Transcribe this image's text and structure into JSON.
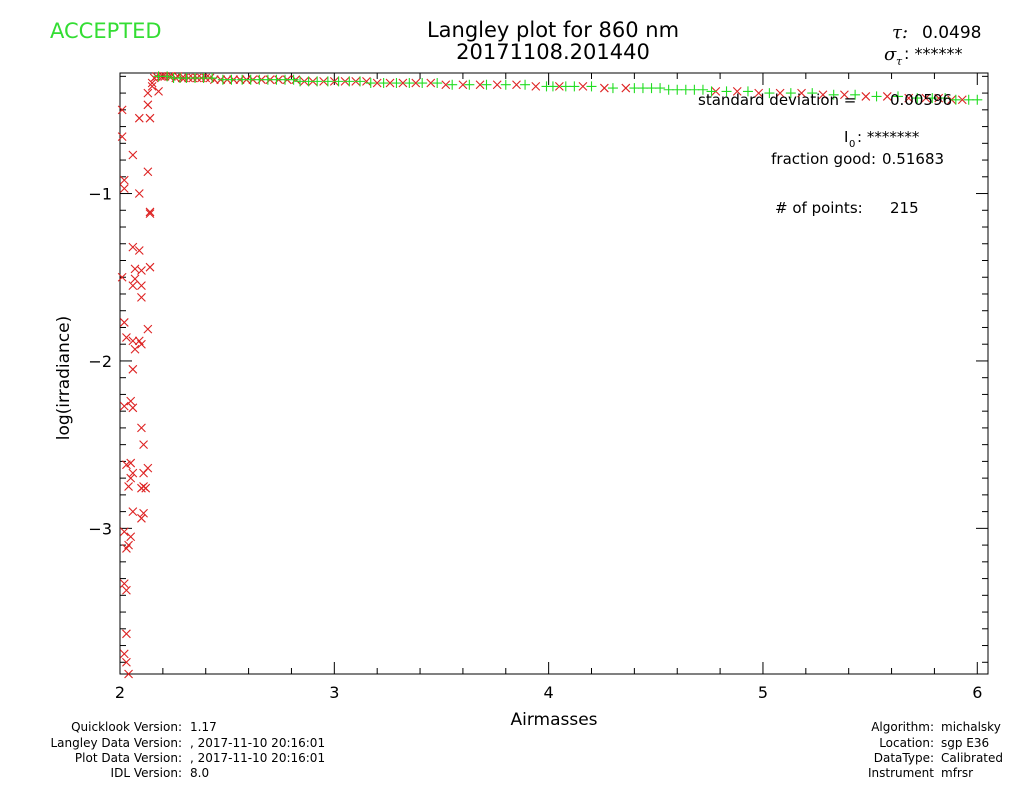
{
  "status": "ACCEPTED",
  "tau_label": "τ:",
  "tau_value": "0.0498",
  "sigma_label": "σ",
  "sigma_sub": "τ",
  "sigma_value": ": ******",
  "stats": {
    "std_label": "standard deviation  =",
    "std_value": "0.00596",
    "i0_label": "I",
    "i0_sub": "0",
    "i0_value": ": *******",
    "fraction_label": "fraction good:",
    "fraction_value": "0.51683",
    "points_label": "# of points:",
    "points_value": "215"
  },
  "footer_left": [
    {
      "label": "Quicklook Version:",
      "value": "1.17"
    },
    {
      "label": "Langley Data Version:",
      "value": ", 2017-11-10 20:16:01"
    },
    {
      "label": "Plot Data Version:",
      "value": ", 2017-11-10 20:16:01"
    },
    {
      "label": "IDL Version:",
      "value": "8.0"
    }
  ],
  "footer_right": [
    {
      "label": "Algorithm:",
      "value": "michalsky"
    },
    {
      "label": "Location:",
      "value": "sgp E36"
    },
    {
      "label": "DataType:",
      "value": "Calibrated"
    },
    {
      "label": "Instrument",
      "value": "mfrsr"
    }
  ],
  "colors": {
    "status": "#33dd33",
    "good": "#22dd22",
    "rejected": "#dd2222",
    "axes": "#000000"
  },
  "chart_data": {
    "type": "scatter",
    "title": "Langley plot for 860 nm",
    "subtitle": "20171108.201440",
    "xlabel": "Airmasses",
    "ylabel": "log(irradiance)",
    "xlim": [
      2,
      6.05
    ],
    "ylim": [
      -3.87,
      -0.28
    ],
    "xticks": [
      2,
      3,
      4,
      5,
      6
    ],
    "yticks": [
      -1,
      -2,
      -3
    ],
    "yticklabels": [
      "−1",
      "−2",
      "−3"
    ],
    "series": [
      {
        "marker": "x",
        "color": "#dd2222",
        "points": [
          [
            2.01,
            -0.5
          ],
          [
            2.01,
            -0.66
          ],
          [
            2.02,
            -0.92
          ],
          [
            2.02,
            -0.97
          ],
          [
            2.01,
            -1.5
          ],
          [
            2.02,
            -1.77
          ],
          [
            2.03,
            -1.86
          ],
          [
            2.02,
            -2.27
          ],
          [
            2.03,
            -2.62
          ],
          [
            2.04,
            -2.75
          ],
          [
            2.02,
            -3.02
          ],
          [
            2.03,
            -3.12
          ],
          [
            2.02,
            -3.33
          ],
          [
            2.03,
            -3.37
          ],
          [
            2.03,
            -3.63
          ],
          [
            2.02,
            -3.75
          ],
          [
            2.03,
            -3.8
          ],
          [
            2.04,
            -3.87
          ],
          [
            2.06,
            -0.77
          ],
          [
            2.06,
            -1.32
          ],
          [
            2.07,
            -1.45
          ],
          [
            2.07,
            -1.51
          ],
          [
            2.06,
            -1.55
          ],
          [
            2.06,
            -1.88
          ],
          [
            2.07,
            -1.93
          ],
          [
            2.06,
            -2.05
          ],
          [
            2.05,
            -2.24
          ],
          [
            2.06,
            -2.28
          ],
          [
            2.05,
            -2.61
          ],
          [
            2.06,
            -2.67
          ],
          [
            2.05,
            -2.7
          ],
          [
            2.06,
            -2.9
          ],
          [
            2.05,
            -3.05
          ],
          [
            2.04,
            -3.1
          ],
          [
            2.09,
            -0.55
          ],
          [
            2.09,
            -1.0
          ],
          [
            2.09,
            -1.34
          ],
          [
            2.1,
            -1.46
          ],
          [
            2.1,
            -1.55
          ],
          [
            2.1,
            -1.62
          ],
          [
            2.09,
            -1.88
          ],
          [
            2.1,
            -1.9
          ],
          [
            2.1,
            -2.4
          ],
          [
            2.11,
            -2.5
          ],
          [
            2.11,
            -2.67
          ],
          [
            2.11,
            -2.75
          ],
          [
            2.1,
            -2.76
          ],
          [
            2.11,
            -2.91
          ],
          [
            2.1,
            -2.94
          ],
          [
            2.13,
            -0.47
          ],
          [
            2.13,
            -0.87
          ],
          [
            2.14,
            -1.11
          ],
          [
            2.14,
            -1.12
          ],
          [
            2.14,
            -1.44
          ],
          [
            2.13,
            -1.81
          ],
          [
            2.13,
            -2.64
          ],
          [
            2.12,
            -2.76
          ],
          [
            2.13,
            -0.4
          ],
          [
            2.14,
            -0.55
          ],
          [
            2.15,
            -0.34
          ],
          [
            2.15,
            -0.36
          ],
          [
            2.16,
            -0.31
          ],
          [
            2.17,
            -0.3
          ],
          [
            2.18,
            -0.39
          ],
          [
            2.19,
            -0.3
          ],
          [
            2.2,
            -0.3
          ],
          [
            2.21,
            -0.3
          ],
          [
            2.23,
            -0.3
          ],
          [
            2.24,
            -0.3
          ],
          [
            2.26,
            -0.31
          ],
          [
            2.27,
            -0.3
          ],
          [
            2.29,
            -0.31
          ],
          [
            2.3,
            -0.31
          ],
          [
            2.32,
            -0.31
          ],
          [
            2.34,
            -0.31
          ],
          [
            2.36,
            -0.31
          ],
          [
            2.38,
            -0.31
          ],
          [
            2.4,
            -0.31
          ],
          [
            2.42,
            -0.31
          ],
          [
            2.44,
            -0.32
          ],
          [
            2.47,
            -0.32
          ],
          [
            2.5,
            -0.32
          ],
          [
            2.53,
            -0.32
          ],
          [
            2.56,
            -0.32
          ],
          [
            2.59,
            -0.32
          ],
          [
            2.62,
            -0.32
          ],
          [
            2.66,
            -0.32
          ],
          [
            2.7,
            -0.32
          ],
          [
            2.74,
            -0.32
          ],
          [
            2.78,
            -0.32
          ],
          [
            2.82,
            -0.32
          ],
          [
            2.86,
            -0.33
          ],
          [
            2.9,
            -0.33
          ],
          [
            2.95,
            -0.33
          ],
          [
            3.0,
            -0.33
          ],
          [
            3.05,
            -0.33
          ],
          [
            3.1,
            -0.33
          ],
          [
            3.15,
            -0.33
          ],
          [
            3.2,
            -0.34
          ],
          [
            3.26,
            -0.34
          ],
          [
            3.32,
            -0.34
          ],
          [
            3.38,
            -0.34
          ],
          [
            3.45,
            -0.34
          ],
          [
            3.52,
            -0.35
          ],
          [
            3.6,
            -0.35
          ],
          [
            3.68,
            -0.35
          ],
          [
            3.76,
            -0.35
          ],
          [
            3.85,
            -0.35
          ],
          [
            3.94,
            -0.36
          ],
          [
            4.05,
            -0.36
          ],
          [
            4.16,
            -0.36
          ],
          [
            4.26,
            -0.37
          ],
          [
            4.36,
            -0.37
          ],
          [
            4.78,
            -0.39
          ],
          [
            4.88,
            -0.39
          ],
          [
            4.98,
            -0.4
          ],
          [
            5.08,
            -0.4
          ],
          [
            5.18,
            -0.4
          ],
          [
            5.28,
            -0.41
          ],
          [
            5.38,
            -0.41
          ],
          [
            5.48,
            -0.42
          ],
          [
            5.58,
            -0.42
          ],
          [
            5.68,
            -0.43
          ],
          [
            5.76,
            -0.43
          ],
          [
            5.82,
            -0.43
          ],
          [
            5.88,
            -0.44
          ],
          [
            5.93,
            -0.44
          ]
        ]
      },
      {
        "marker": "+",
        "color": "#22dd22",
        "points": [
          [
            2.18,
            -0.3
          ],
          [
            2.22,
            -0.3
          ],
          [
            2.25,
            -0.31
          ],
          [
            2.28,
            -0.31
          ],
          [
            2.31,
            -0.31
          ],
          [
            2.35,
            -0.31
          ],
          [
            2.39,
            -0.31
          ],
          [
            2.43,
            -0.31
          ],
          [
            2.48,
            -0.32
          ],
          [
            2.52,
            -0.32
          ],
          [
            2.57,
            -0.32
          ],
          [
            2.61,
            -0.32
          ],
          [
            2.65,
            -0.32
          ],
          [
            2.69,
            -0.32
          ],
          [
            2.73,
            -0.32
          ],
          [
            2.77,
            -0.32
          ],
          [
            2.81,
            -0.32
          ],
          [
            2.84,
            -0.33
          ],
          [
            2.88,
            -0.33
          ],
          [
            2.92,
            -0.33
          ],
          [
            2.97,
            -0.33
          ],
          [
            3.02,
            -0.33
          ],
          [
            3.07,
            -0.33
          ],
          [
            3.12,
            -0.33
          ],
          [
            3.17,
            -0.34
          ],
          [
            3.23,
            -0.34
          ],
          [
            3.29,
            -0.34
          ],
          [
            3.35,
            -0.34
          ],
          [
            3.41,
            -0.34
          ],
          [
            3.48,
            -0.34
          ],
          [
            3.55,
            -0.35
          ],
          [
            3.63,
            -0.35
          ],
          [
            3.71,
            -0.35
          ],
          [
            3.8,
            -0.35
          ],
          [
            3.89,
            -0.35
          ],
          [
            3.99,
            -0.36
          ],
          [
            4.02,
            -0.36
          ],
          [
            4.08,
            -0.36
          ],
          [
            4.12,
            -0.36
          ],
          [
            4.2,
            -0.36
          ],
          [
            4.3,
            -0.37
          ],
          [
            4.4,
            -0.37
          ],
          [
            4.44,
            -0.37
          ],
          [
            4.48,
            -0.37
          ],
          [
            4.52,
            -0.37
          ],
          [
            4.56,
            -0.38
          ],
          [
            4.6,
            -0.38
          ],
          [
            4.64,
            -0.38
          ],
          [
            4.68,
            -0.38
          ],
          [
            4.72,
            -0.38
          ],
          [
            4.76,
            -0.39
          ],
          [
            4.83,
            -0.39
          ],
          [
            4.93,
            -0.39
          ],
          [
            5.03,
            -0.4
          ],
          [
            5.13,
            -0.4
          ],
          [
            5.23,
            -0.4
          ],
          [
            5.33,
            -0.41
          ],
          [
            5.43,
            -0.41
          ],
          [
            5.53,
            -0.42
          ],
          [
            5.63,
            -0.42
          ],
          [
            5.72,
            -0.43
          ],
          [
            5.79,
            -0.43
          ],
          [
            5.85,
            -0.43
          ],
          [
            5.9,
            -0.44
          ],
          [
            5.96,
            -0.44
          ],
          [
            6.0,
            -0.44
          ]
        ]
      }
    ]
  }
}
